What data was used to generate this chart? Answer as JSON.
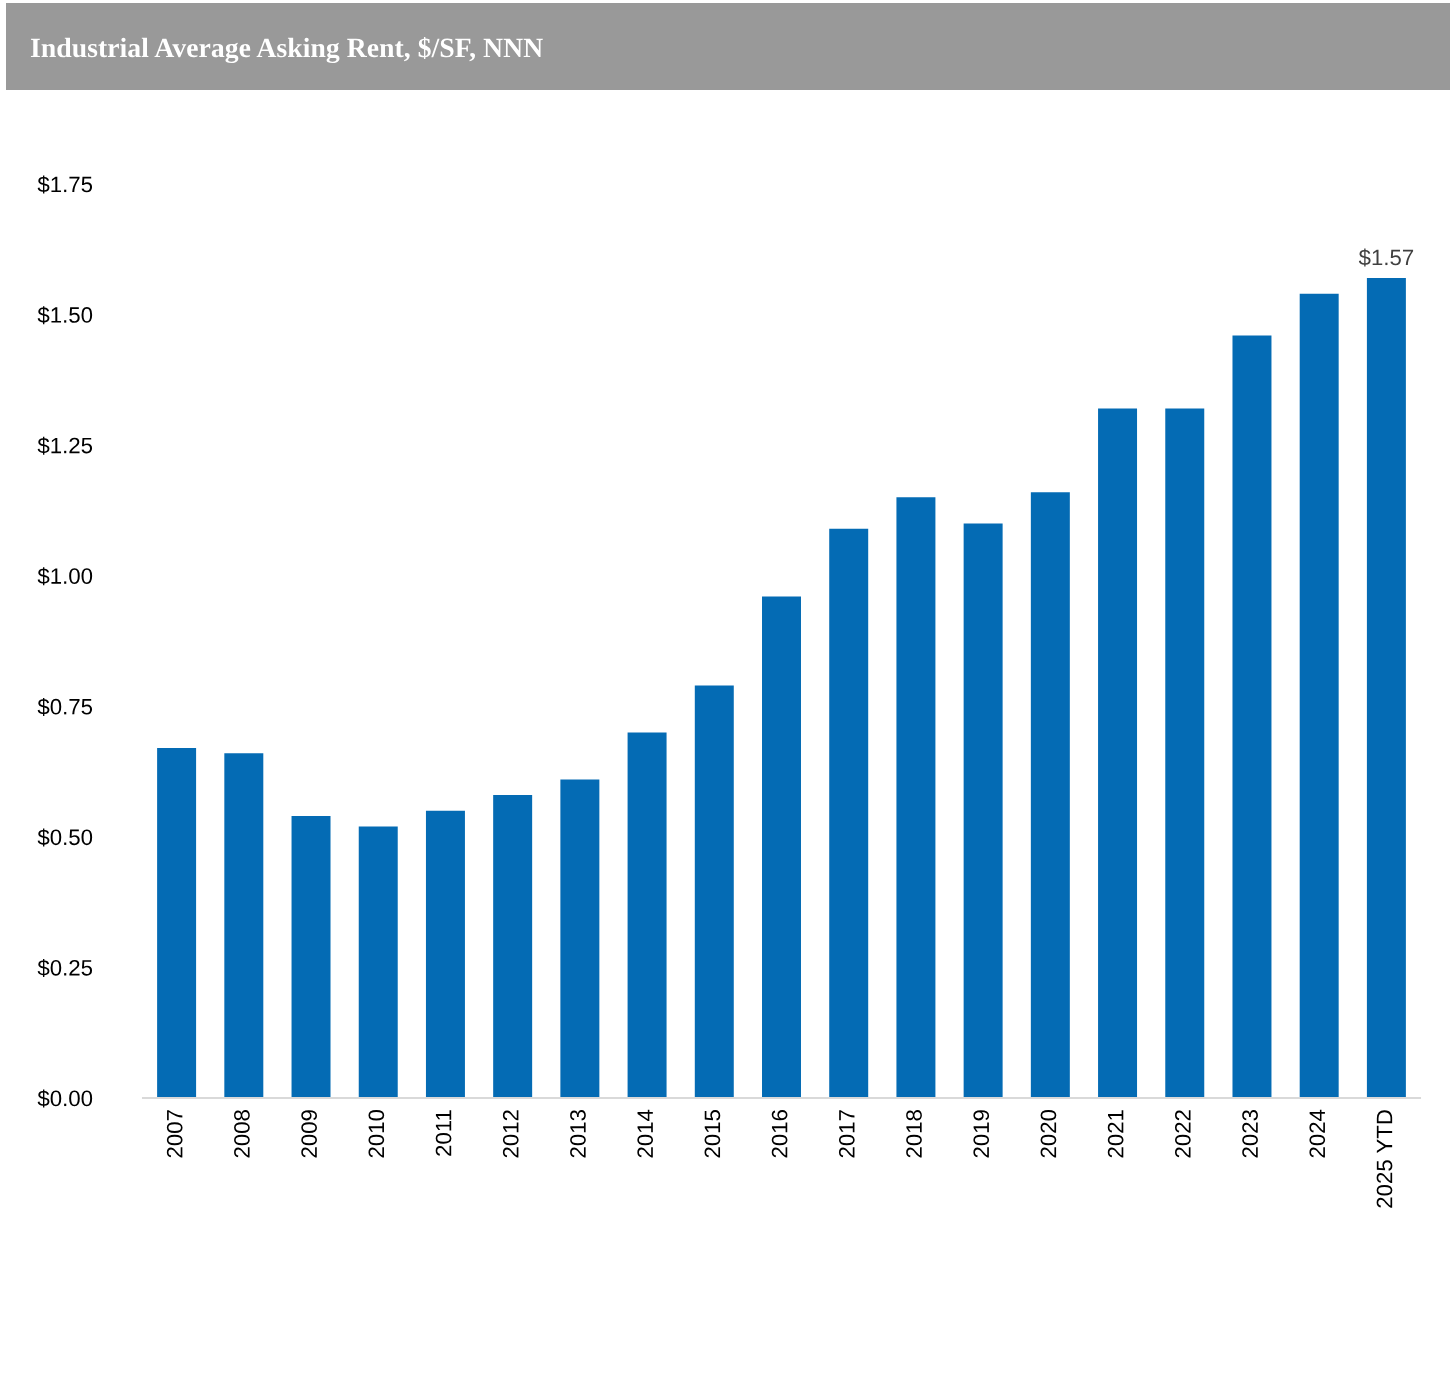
{
  "chart_data": {
    "type": "bar",
    "title": "Industrial Average Asking Rent, $/SF, NNN",
    "categories": [
      "2007",
      "2008",
      "2009",
      "2010",
      "2011",
      "2012",
      "2013",
      "2014",
      "2015",
      "2016",
      "2017",
      "2018",
      "2019",
      "2020",
      "2021",
      "2022",
      "2023",
      "2024",
      "2025 YTD"
    ],
    "values": [
      0.67,
      0.66,
      0.54,
      0.52,
      0.55,
      0.58,
      0.61,
      0.7,
      0.79,
      0.96,
      1.09,
      1.15,
      1.1,
      1.16,
      1.32,
      1.32,
      1.46,
      1.54,
      1.57
    ],
    "value_labels": [
      null,
      null,
      null,
      null,
      null,
      null,
      null,
      null,
      null,
      null,
      null,
      null,
      null,
      null,
      null,
      null,
      null,
      null,
      "$1.57"
    ],
    "color": "#046bb4",
    "ylim": [
      0,
      1.75
    ],
    "yticks": [
      {
        "value": 0,
        "label": "$0.00"
      },
      {
        "value": 0.25,
        "label": "$0.25"
      },
      {
        "value": 0.5,
        "label": "$0.50"
      },
      {
        "value": 0.75,
        "label": "$0.75"
      },
      {
        "value": 1.0,
        "label": "$1.00"
      },
      {
        "value": 1.25,
        "label": "$1.25"
      },
      {
        "value": 1.5,
        "label": "$1.50"
      },
      {
        "value": 1.75,
        "label": "$1.75"
      }
    ],
    "grid": false,
    "legend": false
  }
}
